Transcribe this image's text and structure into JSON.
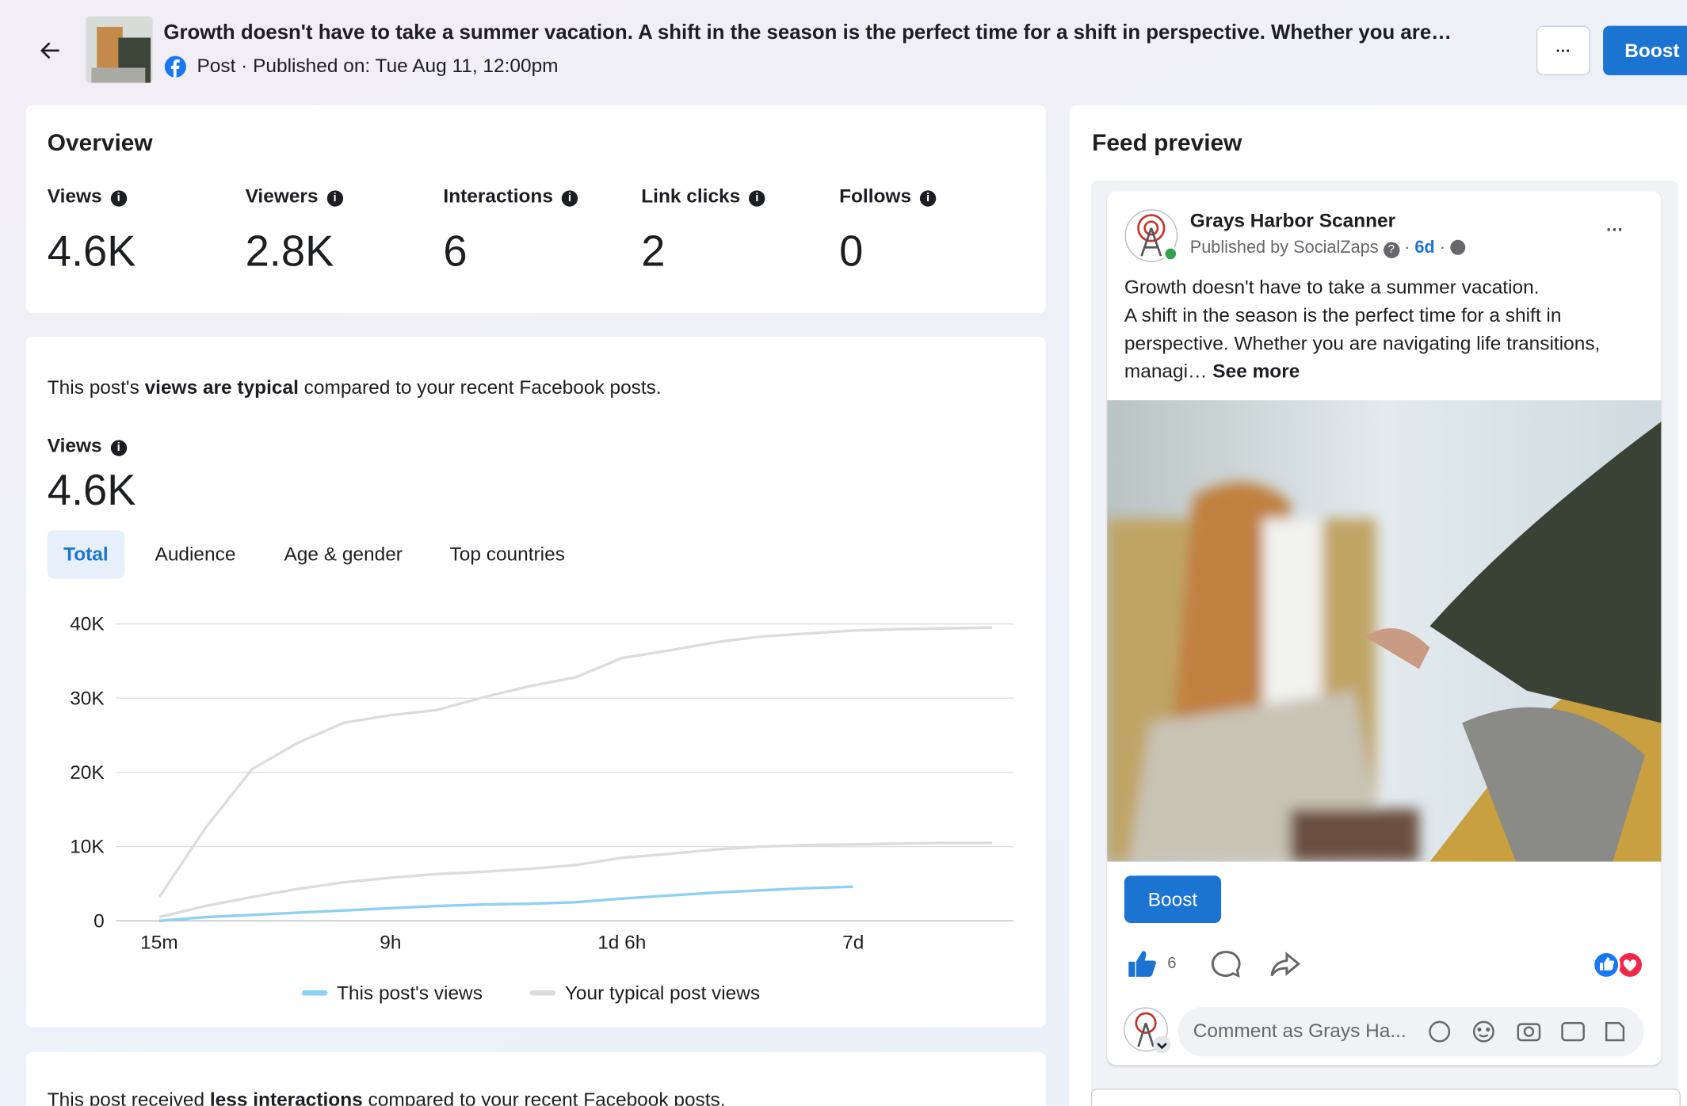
{
  "header": {
    "title": "Growth doesn't have to take a summer vacation. A shift in the season is the perfect time for a shift in perspective. Whether you are…",
    "meta": "Post · Published on: Tue Aug 11, 12:00pm",
    "more": "···",
    "boost": "Boost"
  },
  "overview": {
    "title": "Overview",
    "metrics": [
      {
        "label": "Views",
        "value": "4.6K"
      },
      {
        "label": "Viewers",
        "value": "2.8K"
      },
      {
        "label": "Interactions",
        "value": "6"
      },
      {
        "label": "Link clicks",
        "value": "2"
      },
      {
        "label": "Follows",
        "value": "0"
      }
    ]
  },
  "views_section": {
    "summary": [
      "This post's ",
      "views are typical",
      " compared to your recent Facebook posts."
    ],
    "label": "Views",
    "value": "4.6K",
    "tabs": [
      "Total",
      "Audience",
      "Age & gender",
      "Top countries"
    ]
  },
  "chart_data": {
    "type": "line",
    "categories": [
      "15m",
      null,
      null,
      null,
      null,
      "9h",
      null,
      null,
      null,
      null,
      "1d 6h",
      null,
      null,
      null,
      null,
      "7d",
      null,
      null,
      null
    ],
    "series": [
      {
        "name": "This post's views",
        "color": "#8fd0f2",
        "values": [
          0,
          500,
          800,
          1100,
          1400,
          1700,
          2000,
          2200,
          2300,
          2500,
          3000,
          3400,
          3800,
          4100,
          4400,
          4600,
          null,
          null,
          null
        ]
      },
      {
        "name": "Your typical post views",
        "color": "#dcdcdc",
        "values": [
          500,
          2000,
          3200,
          4300,
          5200,
          5800,
          6300,
          6600,
          7000,
          7500,
          8500,
          9000,
          9600,
          10000,
          10200,
          10300,
          10400,
          10500,
          10500
        ],
        "upper": [
          3200,
          12500,
          20400,
          24000,
          26700,
          27700,
          28400,
          30100,
          31600,
          32800,
          35400,
          36400,
          37500,
          38300,
          38700,
          39100,
          39300,
          39400,
          39500
        ]
      }
    ],
    "ylim": [
      0,
      40000
    ],
    "yticks": [
      {
        "value": 0,
        "label": "0"
      },
      {
        "value": 10000,
        "label": "10K"
      },
      {
        "value": 20000,
        "label": "20K"
      },
      {
        "value": 30000,
        "label": "30K"
      },
      {
        "value": 40000,
        "label": "40K"
      }
    ],
    "grid": true
  },
  "interactions_section": {
    "summary": [
      "This post received ",
      "less interactions",
      " compared to your recent Facebook posts."
    ]
  },
  "feed": {
    "title": "Feed preview",
    "page_name": "Grays Harbor Scanner",
    "published_by": "Published by SocialZaps",
    "separator": "·",
    "age": "6d",
    "more": "···",
    "text_lines": [
      "Growth doesn't have to take a summer vacation.",
      "A shift in the season is the perfect time for a shift in",
      "perspective. Whether you are navigating life transitions,",
      "managi…"
    ],
    "see_more": "See more",
    "boost": "Boost",
    "likes": "6",
    "comment_placeholder": "Comment as Grays Ha..."
  }
}
